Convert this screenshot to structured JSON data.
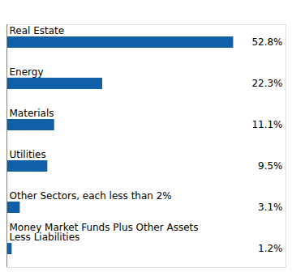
{
  "chart_data": {
    "type": "bar",
    "orientation": "horizontal",
    "categories": [
      "Money Market Funds Plus Other Assets\nLess Liabilities",
      "Other Sectors, each less than 2%",
      "Utilities",
      "Materials",
      "Energy",
      "Real Estate"
    ],
    "values": [
      1.2,
      3.1,
      9.5,
      11.1,
      22.3,
      52.8
    ],
    "value_labels": [
      "1.2%",
      "3.1%",
      "9.5%",
      "11.1%",
      "22.3%",
      "52.8%"
    ],
    "color": "#1060a8",
    "xlim": [
      0,
      65
    ],
    "grid": false,
    "tick_labels": false,
    "data_labels": true
  }
}
